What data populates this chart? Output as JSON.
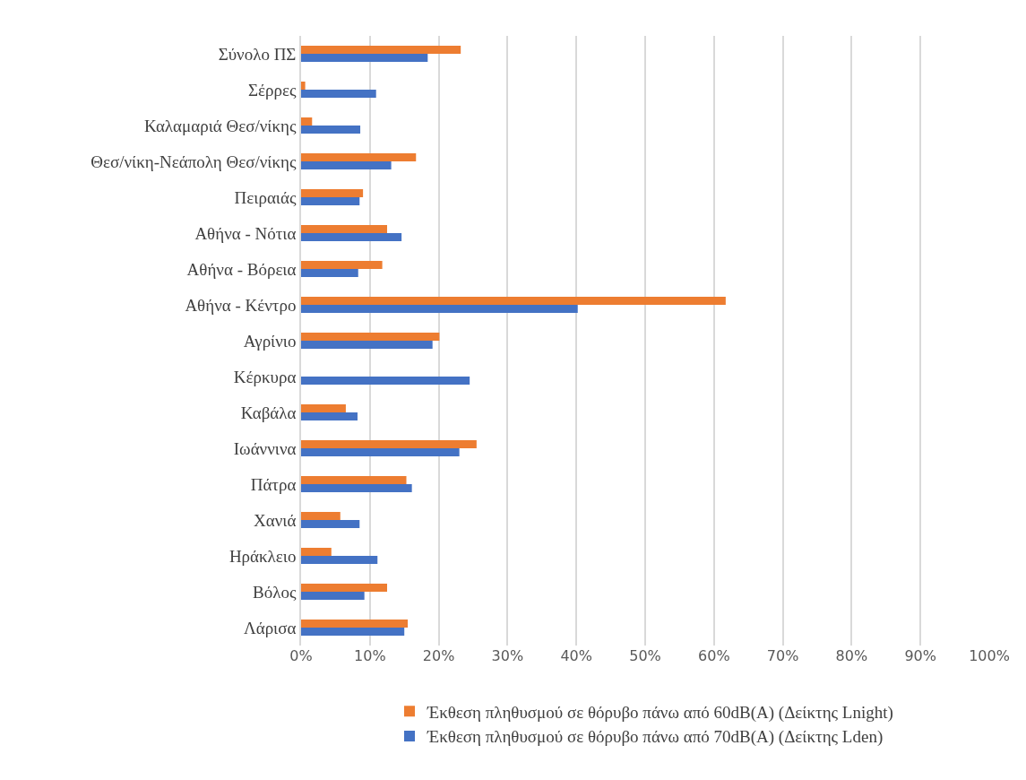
{
  "chart_data": {
    "type": "bar",
    "orientation": "horizontal",
    "categories": [
      "Σύνολο ΠΣ",
      "Σέρρες",
      "Καλαμαριά Θεσ/νίκης",
      "Θεσ/νίκη-Νεάπολη Θεσ/νίκης",
      "Πειραιάς",
      "Αθήνα - Νότια",
      "Αθήνα - Βόρεια",
      "Αθήνα - Κέντρο",
      "Αγρίνιο",
      "Κέρκυρα",
      "Καβάλα",
      "Ιωάννινα",
      "Πάτρα",
      "Χανιά",
      "Ηράκλειο",
      "Βόλος",
      "Λάρισα"
    ],
    "series": [
      {
        "name": "Έκθεση πληθυσμού σε θόρυβο πάνω από 60dB(A) (Δείκτης Lnight)",
        "color": "#ed7d31",
        "values": [
          23.2,
          0.6,
          1.6,
          16.7,
          9.0,
          12.5,
          11.8,
          61.7,
          20.1,
          null,
          6.5,
          25.5,
          15.3,
          5.7,
          4.4,
          12.5,
          15.5
        ]
      },
      {
        "name": "Έκθεση πληθυσμού σε θόρυβο πάνω από 70dB(A) (Δείκτης Lden)",
        "color": "#4472c4",
        "values": [
          18.4,
          10.9,
          8.6,
          13.1,
          8.5,
          14.6,
          8.3,
          40.2,
          19.1,
          24.5,
          8.2,
          23.0,
          16.1,
          8.5,
          11.1,
          9.2,
          15.0
        ]
      }
    ],
    "xlim": [
      0,
      100
    ],
    "xticks": [
      {
        "value": 0,
        "label": "0%"
      },
      {
        "value": 10,
        "label": "10%"
      },
      {
        "value": 20,
        "label": "20%"
      },
      {
        "value": 30,
        "label": "30%"
      },
      {
        "value": 40,
        "label": "40%"
      },
      {
        "value": 50,
        "label": "50%"
      },
      {
        "value": 60,
        "label": "60%"
      },
      {
        "value": 70,
        "label": "70%"
      },
      {
        "value": 80,
        "label": "80%"
      },
      {
        "value": 90,
        "label": "90%"
      },
      {
        "value": 100,
        "label": "100%"
      }
    ],
    "grid": "x",
    "legend": "bottom"
  }
}
